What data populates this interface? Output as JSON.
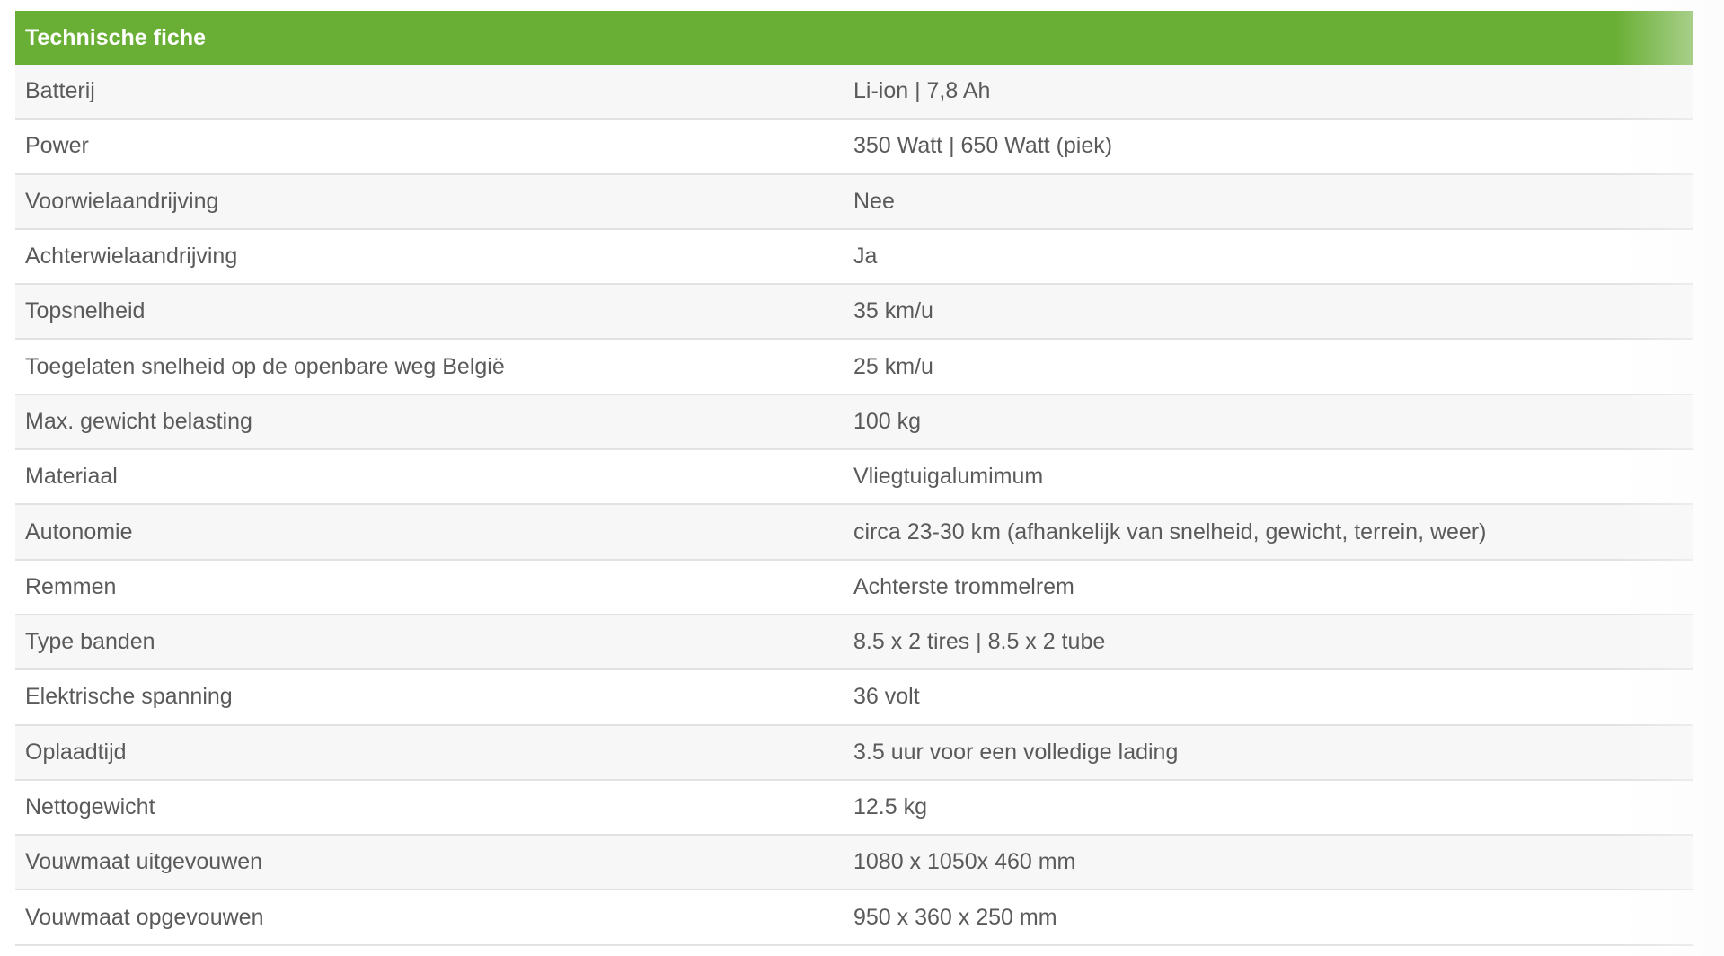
{
  "title": "Technische fiche",
  "colors": {
    "header": "#6aaf35",
    "row_alt": "#f7f7f7",
    "text": "#5a5a5a"
  },
  "rows": [
    {
      "label": "Batterij",
      "value": "Li-ion | 7,8 Ah"
    },
    {
      "label": "Power",
      "value": "350 Watt | 650 Watt (piek)"
    },
    {
      "label": "Voorwielaandrijving",
      "value": "Nee"
    },
    {
      "label": "Achterwielaandrijving",
      "value": "Ja"
    },
    {
      "label": "Topsnelheid",
      "value": "35 km/u"
    },
    {
      "label": "Toegelaten snelheid op de openbare weg België",
      "value": "25 km/u"
    },
    {
      "label": "Max. gewicht belasting",
      "value": "100 kg"
    },
    {
      "label": "Materiaal",
      "value": "Vliegtuigalumimum"
    },
    {
      "label": "Autonomie",
      "value": "circa 23-30 km (afhankelijk van snelheid, gewicht, terrein, weer)"
    },
    {
      "label": "Remmen",
      "value": "Achterste trommelrem"
    },
    {
      "label": "Type banden",
      "value": "8.5 x 2 tires | 8.5 x 2 tube"
    },
    {
      "label": "Elektrische spanning",
      "value": "36 volt"
    },
    {
      "label": "Oplaadtijd",
      "value": "3.5 uur voor een volledige lading"
    },
    {
      "label": "Nettogewicht",
      "value": "12.5 kg"
    },
    {
      "label": "Vouwmaat uitgevouwen",
      "value": "1080 x 1050x 460 mm"
    },
    {
      "label": "Vouwmaat opgevouwen",
      "value": "950 x 360 x 250 mm"
    }
  ]
}
